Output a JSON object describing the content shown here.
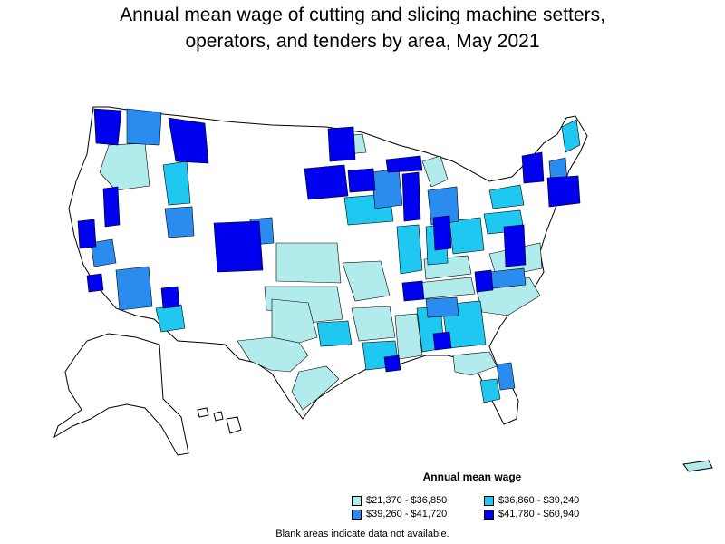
{
  "title_line1": "Annual mean wage of cutting and slicing machine setters,",
  "title_line2": "operators, and tenders by area, May 2021",
  "legend": {
    "title": "Annual mean wage",
    "items": [
      {
        "label": "$21,370 - $36,850",
        "color": "#b2ebec"
      },
      {
        "label": "$36,860 - $39,240",
        "color": "#1ec8f0"
      },
      {
        "label": "$39,260 - $41,720",
        "color": "#2b8cf0"
      },
      {
        "label": "$41,780 - $60,940",
        "color": "#0000f0"
      }
    ]
  },
  "note": "Blank areas indicate data not available."
}
